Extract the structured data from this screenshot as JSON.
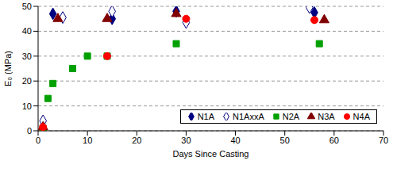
{
  "chart_data": {
    "type": "scatter",
    "x_label": "Days Since Casting",
    "y_label": "E₀ (MPa)",
    "xlim": [
      0,
      70
    ],
    "xticks": [
      0,
      10,
      20,
      30,
      40,
      50,
      60,
      70
    ],
    "ylim": [
      0,
      50
    ],
    "yticks": [
      0,
      10,
      20,
      30,
      40,
      50
    ],
    "grid": true,
    "legend": "lower right",
    "series": [
      {
        "name": "N1A",
        "color": "#000080",
        "marker": "diamond",
        "x": [
          1,
          3,
          15,
          28,
          56
        ],
        "values": [
          1.5,
          47,
          45,
          48,
          47.5
        ]
      },
      {
        "name": "N1AxxA",
        "color": "#000080",
        "marker": "open_diamond",
        "x": [
          1,
          5,
          15,
          30,
          55
        ],
        "values": [
          4,
          45.5,
          48,
          43.5,
          49.5
        ]
      },
      {
        "name": "N2A",
        "color": "#00a000",
        "marker": "square",
        "x": [
          1,
          2,
          3,
          7,
          10,
          14,
          28,
          57
        ],
        "values": [
          1,
          13,
          19,
          25,
          30,
          30,
          35,
          35
        ]
      },
      {
        "name": "N3A",
        "color": "#800000",
        "marker": "triangle",
        "x": [
          1,
          4,
          14,
          28,
          58
        ],
        "values": [
          1.5,
          45,
          45,
          47,
          44.5
        ]
      },
      {
        "name": "N4A",
        "color": "#ff0000",
        "marker": "circle",
        "x": [
          1,
          14,
          30,
          56
        ],
        "values": [
          1.5,
          30,
          45,
          44.5
        ]
      }
    ]
  }
}
